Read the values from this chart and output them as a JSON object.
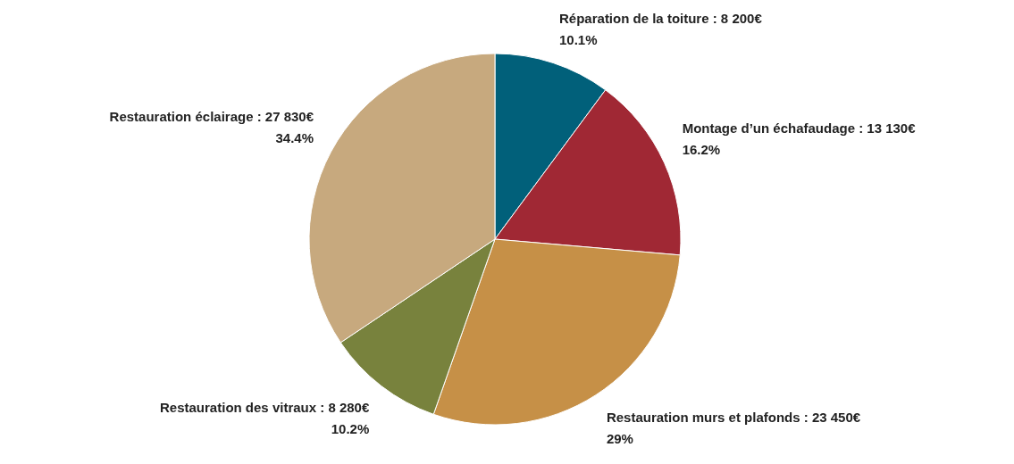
{
  "chart_data": {
    "type": "pie",
    "categories": [
      "Réparation de la toiture",
      "Montage d’un échafaudage",
      "Restauration murs et plafonds",
      "Restauration des vitraux",
      "Restauration éclairage"
    ],
    "values": [
      8200,
      13130,
      23450,
      8280,
      27830
    ],
    "colors": [
      "#01607a",
      "#a02834",
      "#c69047",
      "#78823d",
      "#c7a97e"
    ],
    "value_labels": [
      "8 200€\n10.1%",
      "13 130€\n16.2%",
      "23 450€\n29%",
      "8 280€\n10.2%",
      "27 830€\n34.4%"
    ]
  }
}
